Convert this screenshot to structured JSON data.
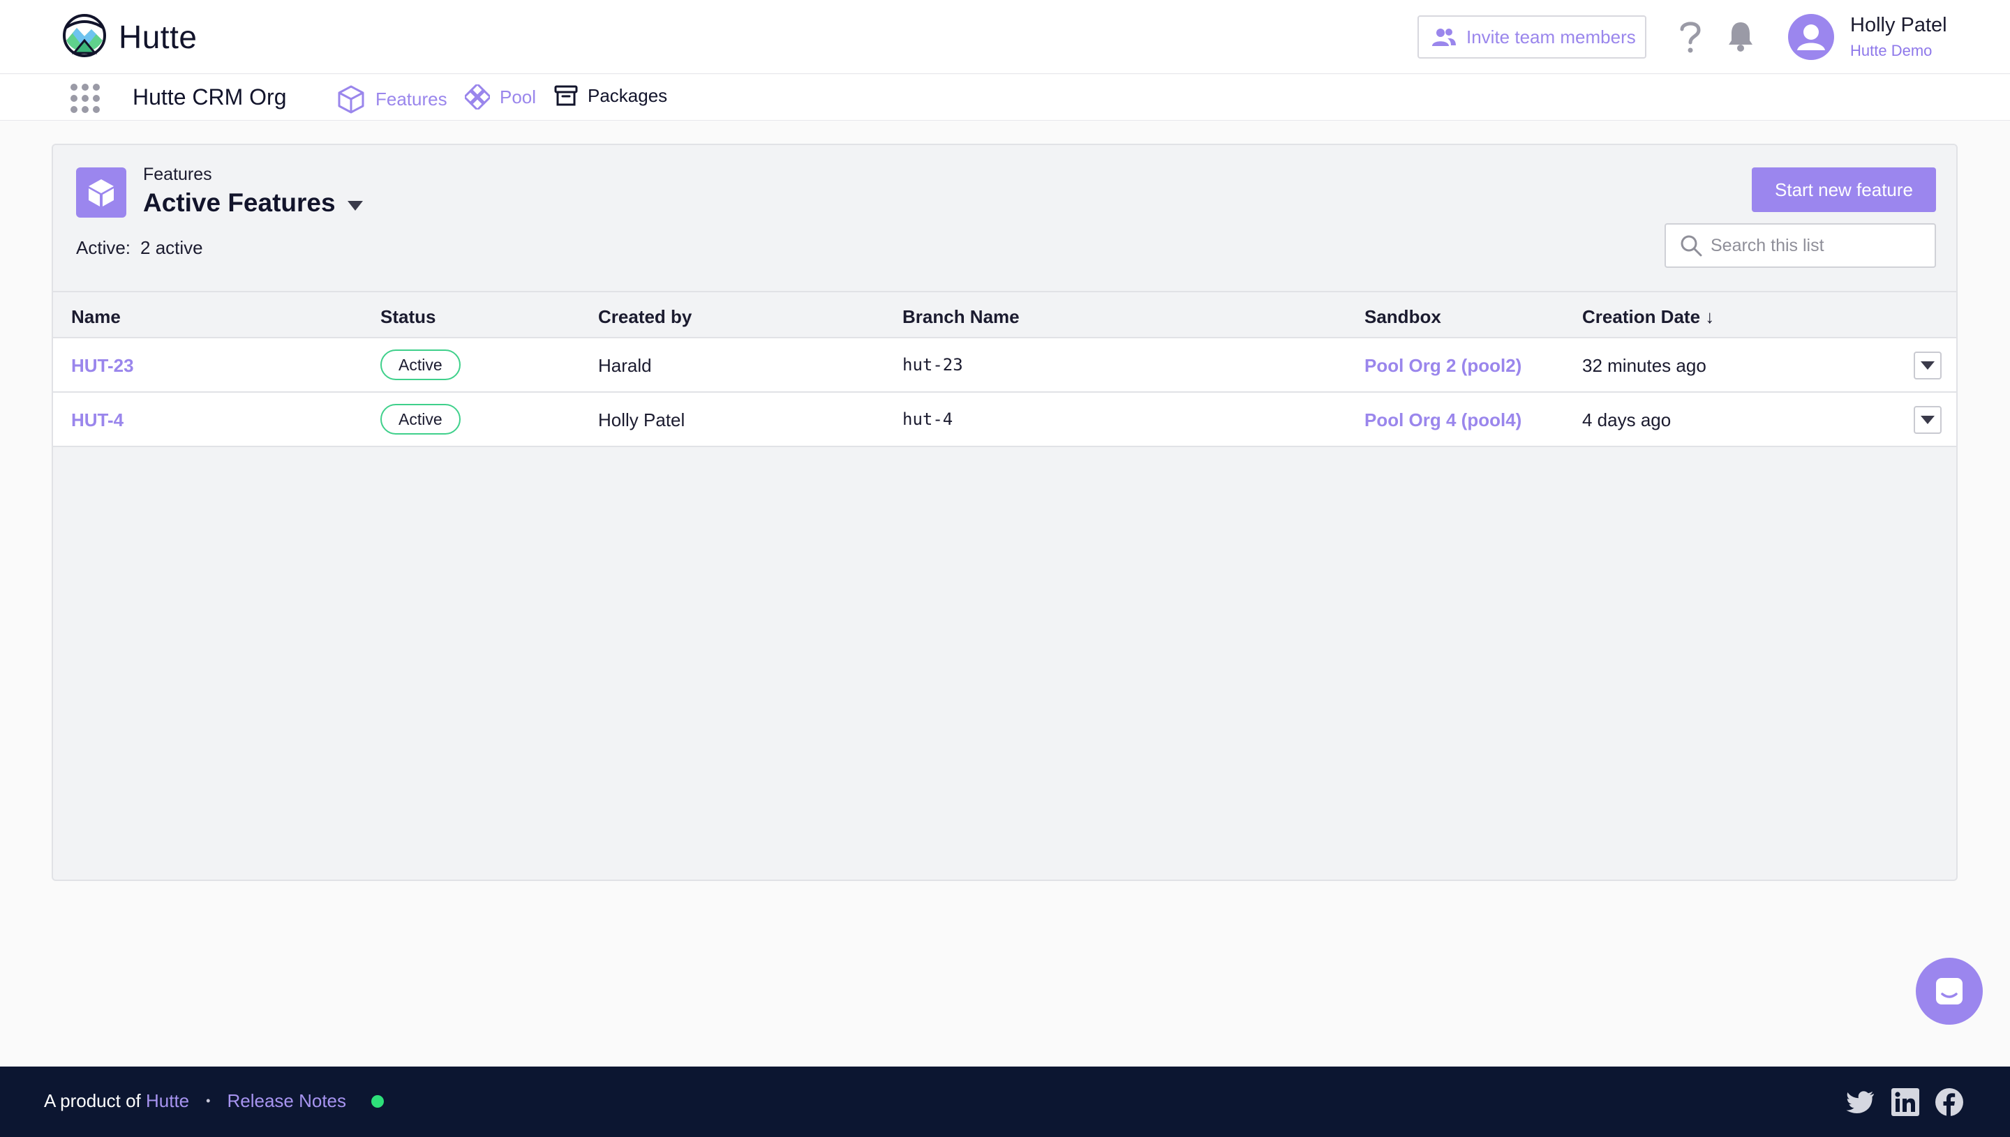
{
  "brand": {
    "name": "Hutte"
  },
  "header": {
    "invite_label": "Invite team members",
    "user_name": "Holly Patel",
    "user_org": "Hutte Demo"
  },
  "subnav": {
    "org_name": "Hutte CRM Org",
    "items": [
      {
        "label": "Features",
        "icon": "cube-icon",
        "active": true
      },
      {
        "label": "Pool",
        "icon": "pool-icon",
        "active": false
      },
      {
        "label": "Packages",
        "icon": "package-icon",
        "active": false
      }
    ]
  },
  "list": {
    "crumb": "Features",
    "title": "Active Features",
    "active_label": "Active:",
    "active_value": "2 active",
    "new_button": "Start new feature",
    "search_placeholder": "Search this list",
    "columns": {
      "name": "Name",
      "status": "Status",
      "created_by": "Created by",
      "branch": "Branch Name",
      "sandbox": "Sandbox",
      "date": "Creation Date ↓"
    },
    "rows": [
      {
        "name": "HUT-23",
        "status": "Active",
        "created_by": "Harald",
        "branch": "hut-23",
        "sandbox": "Pool Org 2 (pool2)",
        "date": "32 minutes ago"
      },
      {
        "name": "HUT-4",
        "status": "Active",
        "created_by": "Holly Patel",
        "branch": "hut-4",
        "sandbox": "Pool Org 4 (pool4)",
        "date": "4 days ago"
      }
    ]
  },
  "footer": {
    "prefix": "A product of",
    "brand_link": "Hutte",
    "separator": "•",
    "release_notes": "Release Notes"
  },
  "colors": {
    "accent": "#9b86ee",
    "footer_bg": "#0c1631",
    "status_green": "#3fd08b"
  }
}
